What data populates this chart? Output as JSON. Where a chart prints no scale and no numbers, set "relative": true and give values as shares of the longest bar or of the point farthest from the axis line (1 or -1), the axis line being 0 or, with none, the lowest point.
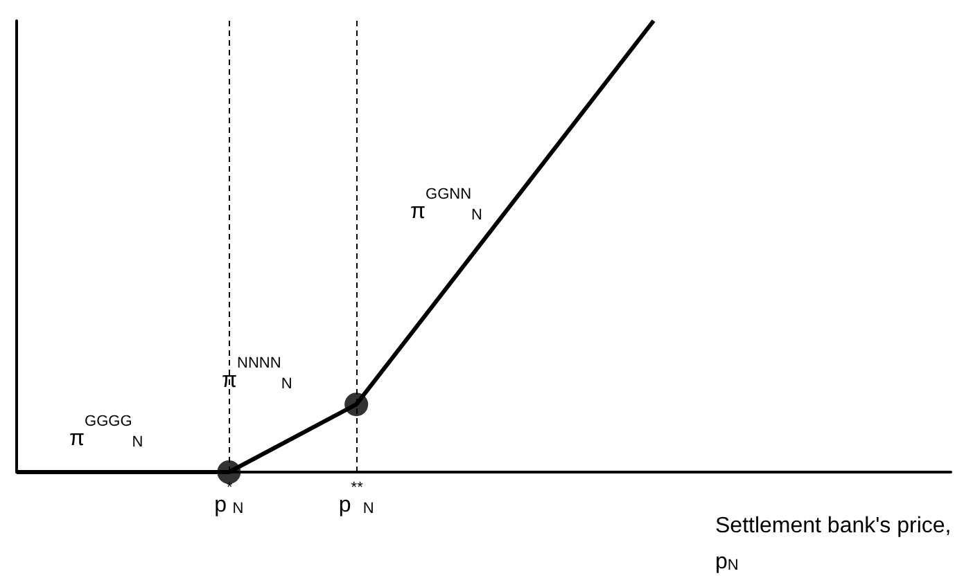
{
  "chart_data": {
    "type": "line",
    "relative": true,
    "xlabel": "Settlement bank's price, p$_{N}$",
    "categories": [
      null,
      null,
      null,
      null,
      null,
      "p$^{*}$$_{N}$",
      null,
      null,
      "p$^{**}$$_{N}$",
      null,
      null,
      null,
      null,
      null,
      null,
      null,
      null,
      null,
      null,
      null,
      null,
      null,
      null
    ],
    "series": [
      {
        "color": "#000000",
        "values": [
          0,
          null,
          null,
          null,
          null,
          0,
          null,
          null,
          0.15,
          null,
          null,
          null,
          null,
          null,
          null,
          1,
          null,
          null,
          null,
          null,
          null,
          null,
          null
        ],
        "marker": "none"
      },
      {
        "type": "scatter",
        "color": "#000000",
        "values": [
          null,
          null,
          null,
          null,
          null,
          0,
          null,
          null,
          0.15,
          null,
          null,
          null,
          null,
          null,
          null,
          null,
          null,
          null,
          null,
          null,
          null,
          null,
          null
        ],
        "marker": "circle"
      }
    ],
    "ref_lines": [
      {
        "axis": "x",
        "value": "p$^{*}$$_{N}$",
        "line_style": "dashed"
      },
      {
        "axis": "x",
        "value": "p$^{**}$$_{N}$",
        "line_style": "dashed"
      }
    ],
    "annotations": [
      "π$^{GGGG}$$_{N}$",
      "π$^{NNNN}$$_{N}$",
      "π$^{GGNN}$$_{N}$"
    ],
    "grid": false
  }
}
